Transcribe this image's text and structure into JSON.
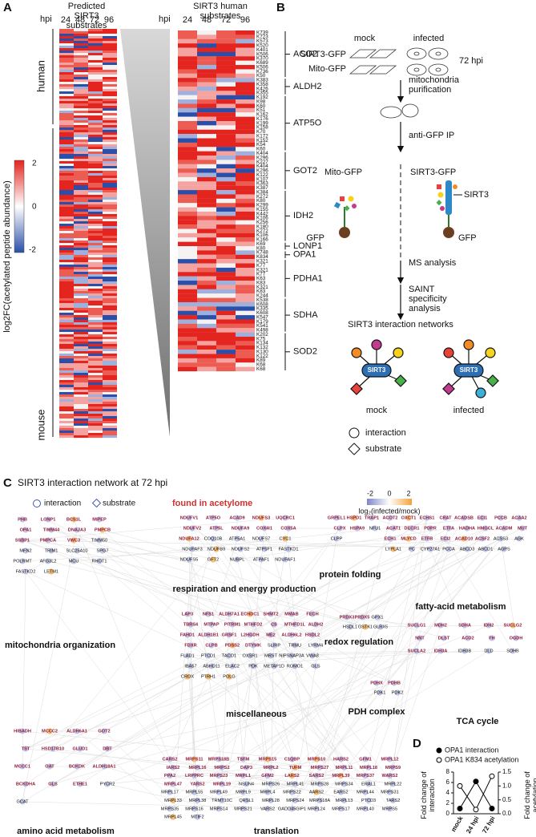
{
  "panel_a": {
    "label": "A",
    "predicted_title": "Predicted SIRT3 substrates",
    "hpi": "hpi",
    "timepoints": [
      "24",
      "48",
      "72",
      "96"
    ],
    "human": "human",
    "mouse": "mouse",
    "colorbar_ticks": [
      "2",
      "0",
      "-2"
    ],
    "colorbar_label": "log2FC(acetylated peptide abundance)",
    "human_title": "SIRT3 human substrates",
    "substrates": [
      {
        "gene": "ACO2",
        "sites": [
          "K739",
          "K723",
          "K573",
          "K520",
          "K401",
          "K506",
          "K370",
          "K689",
          "K506",
          "K736",
          "K50"
        ]
      },
      {
        "gene": "ALDH2",
        "sites": [
          "K383",
          "K358",
          "K426",
          "K355"
        ]
      },
      {
        "gene": "ATP5O",
        "sites": [
          "K192",
          "K98",
          "K60",
          "K51",
          "K162",
          "K176",
          "K199",
          "K158",
          "K70",
          "K172",
          "K152",
          "K54",
          "K60"
        ]
      },
      {
        "gene": "GOT2",
        "sites": [
          "K404",
          "K296",
          "K227",
          "K404",
          "K296",
          "K122",
          "K107",
          "K363",
          "K387"
        ]
      },
      {
        "gene": "IDH2",
        "sites": [
          "K384",
          "K272",
          "K80",
          "K299",
          "K155",
          "K442",
          "K106",
          "K256",
          "K180",
          "K272",
          "K106",
          "K166"
        ]
      },
      {
        "gene": "LONP1",
        "sites": [
          "K69",
          "K80"
        ]
      },
      {
        "gene": "OPA1",
        "sites": [
          "K748",
          "K834"
        ]
      },
      {
        "gene": "PDHA1",
        "sites": [
          "K321",
          "K77",
          "K321",
          "K77",
          "K63",
          "K83",
          "K321",
          "K83",
          "K244"
        ]
      },
      {
        "gene": "SDHA",
        "sites": [
          "K538",
          "K608",
          "K335",
          "K608",
          "K547",
          "K179",
          "K541",
          "K498"
        ]
      },
      {
        "gene": "SOD2",
        "sites": [
          "K202",
          "K75",
          "K134",
          "K132",
          "K130",
          "K122",
          "K89",
          "K68",
          "K68"
        ]
      }
    ]
  },
  "panel_b": {
    "label": "B",
    "mock": "mock",
    "infected": "infected",
    "sirt3_gfp": "SIRT3-GFP",
    "mito_gfp": "Mito-GFP",
    "time": "72 hpi",
    "step1": "mitochondria purification",
    "step2": "anti-GFP IP",
    "sirt3": "SIRT3",
    "gfp": "GFP",
    "step3": "MS analysis",
    "step4": "SAINT specificity analysis",
    "networks": "SIRT3 interaction networks",
    "legend": [
      "interaction",
      "substrate"
    ]
  },
  "panel_c": {
    "label": "C",
    "title": "SIRT3 interaction network at 72 hpi",
    "legend": [
      "interaction",
      "substrate"
    ],
    "acetylome": "found in acetylome",
    "scale_ticks": [
      "-2",
      "0",
      "2"
    ],
    "scale_label": "log₂(infected/mock)",
    "clusters": [
      {
        "title": "mitochondria organization",
        "acetylome": [
          "PHB",
          "LONP1",
          "BCS1L",
          "MIPEP",
          "OPA1",
          "TIMM44",
          "DNAJA3",
          "PMPCB",
          "SSBP1",
          "PMPCA",
          "VWC3"
        ],
        "other": [
          "TIMM50",
          "MFN2",
          "TRIM1",
          "SLC25A10",
          "SPG7",
          "POLRMT",
          "AFG3L2",
          "MCU",
          "RHOT1",
          "FASTKD2",
          "LETM1"
        ]
      },
      {
        "title": "respiration and energy production",
        "acetylome": [
          "NDUFV1",
          "ATP5O",
          "ACAD9",
          "NDUFS3",
          "UQCRC1",
          "NDUFV2",
          "ATP5L",
          "NDUFA9",
          "COX4I1",
          "COX5A",
          "NDUFA12"
        ],
        "other": [
          "COQ10B",
          "ATP5A1",
          "NDUFS7",
          "CYC1",
          "NDUFAF3",
          "NDUFB9",
          "NDUFS2",
          "ATP5F1",
          "FASTKD1",
          "NDUFS5",
          "GFT2",
          "NUBPL",
          "ATPAF1",
          "NDUFAF1"
        ]
      },
      {
        "title": "protein folding",
        "acetylome": [
          "GRPEL1",
          "HSPD1",
          "TRAP1",
          "CLPX",
          "HSPA9"
        ],
        "other": [
          "NFU1",
          "CLPP"
        ]
      },
      {
        "title": "fatty-acid metabolism",
        "acetylome": [
          "ACOT2",
          "OXCT1",
          "ECHS1",
          "CRAT",
          "ACADSB",
          "ECI1",
          "PCCB",
          "ACAA2",
          "ACAT1",
          "DECR1",
          "PDPR",
          "ETFA",
          "HADHA",
          "HMGCL",
          "ACADM",
          "MUT",
          "ECH1",
          "MLYCD",
          "ETFB",
          "ECI2",
          "ACAD10",
          "ACSF2"
        ],
        "other": [
          "ACSS3",
          "AGK",
          "LYPLA1",
          "PC",
          "CYP27A1",
          "PCCA",
          "ABCD3",
          "ABCD1",
          "AGPS"
        ]
      },
      {
        "title": "miscellaneous",
        "acetylome": [
          "LAP3",
          "NFS1",
          "ALDH7A1",
          "ECHDC1",
          "SHMT2",
          "MMAB",
          "FECH",
          "TBRS4",
          "MTPAP",
          "PITRM1",
          "MTHFD2",
          "CS",
          "MTHFD1L",
          "ALDH2",
          "FAHD1",
          "ALDH1B1",
          "GRSF1",
          "L2HGDH",
          "ME2",
          "ALDH6L2",
          "HSDL2",
          "FDXR",
          "CLPB",
          "PDSS2",
          "DTYMK"
        ],
        "other": [
          "SLIRP",
          "TRMU",
          "LYRM4",
          "FLAD1",
          "PTCD1",
          "TACO1",
          "OXSR1",
          "MRST",
          "NIPSNAP3A",
          "VWA8",
          "IBA57",
          "ABHD11",
          "ELAC2",
          "PDK",
          "METAP1D",
          "ROMO1",
          "GLS",
          "CROX",
          "PTRH1",
          "POLG"
        ]
      },
      {
        "title": "redox regulation",
        "acetylome": [
          "PRDX3",
          "PRDX5"
        ],
        "other": [
          "GPX1",
          "HSDL1",
          "GSTK1",
          "GLRX5"
        ]
      },
      {
        "title": "TCA cycle",
        "acetylome": [
          "SUCLG1",
          "MDH2",
          "SDHA",
          "IDH2",
          "SUCLG2",
          "NNT",
          "DLST",
          "ACO2",
          "FH",
          "OGDH",
          "SUCLA2",
          "IDH3A"
        ],
        "other": [
          "IDH3B",
          "DLD",
          "SDHB"
        ]
      },
      {
        "title": "PDH complex",
        "acetylome": [
          "PDHX",
          "PDHB"
        ],
        "other": [
          "PDK1",
          "PDK2"
        ]
      },
      {
        "title": "amino acid metabolism",
        "acetylome": [
          "HIBADH",
          "MCCC2",
          "ALDH6A1",
          "GOT2",
          "TST",
          "HSD17B10",
          "GLUD1",
          "DBT",
          "MCCC1",
          "OAT",
          "BCKDK",
          "ALDH18A1",
          "BCKDHA",
          "GLS",
          "ETHE1"
        ],
        "other": [
          "PYCR2",
          "GCAT"
        ]
      },
      {
        "title": "translation",
        "acetylome": [
          "CARS2",
          "MRPS11",
          "MRPS18B",
          "TSFM",
          "MRPS15",
          "C1QBP",
          "MRPS10",
          "HARS2",
          "GFM1",
          "MRPL12",
          "IARS2",
          "MRPL16",
          "MRPS2",
          "DAP3",
          "MRPL2",
          "TUFM",
          "MRPS27",
          "MRPL11",
          "MRPL18",
          "MRPS9",
          "PPA2",
          "LRPPRC",
          "MRPS23",
          "MRPL1",
          "GFM2",
          "LARS2",
          "SARS2",
          "MRPL39",
          "MRPS37",
          "WARS2",
          "MRPL47",
          "YARS2",
          "MRPL19"
        ],
        "other": [
          "NSUN4",
          "MRPS26",
          "MRPL41",
          "MRPS28",
          "MRPS34",
          "ERAL1",
          "MRPL22",
          "MRPL17",
          "MRPL55",
          "MRPL49",
          "MRPL9",
          "MRPL4",
          "MRPS22",
          "AARS2",
          "EARS2",
          "MRPL44",
          "MRPS31",
          "MRPL33",
          "MRPL38",
          "TRMT10C",
          "QRSL1",
          "MRPL28",
          "MRPS24",
          "MRPS18A",
          "MRPL13",
          "PTCD3",
          "TARS2",
          "MRPS35",
          "MRPS16",
          "MRPS14",
          "MRPS21",
          "VARS2",
          "GADD45GIP1",
          "MRPL24",
          "MRPS17",
          "MRPL40",
          "MRPS5",
          "MRPL45",
          "MTIF2"
        ]
      }
    ]
  },
  "chart_data": {
    "type": "line",
    "label": "D",
    "categories": [
      "mock",
      "24 hpi",
      "72 hpi"
    ],
    "series": [
      {
        "name": "OPA1 interaction",
        "color": "#000000",
        "values": [
          1.0,
          6.2,
          1.0
        ]
      },
      {
        "name": "OPA1 K834 acetylation",
        "color": "#000000",
        "axis": "y2",
        "values": [
          1.0,
          0.15,
          1.35
        ]
      }
    ],
    "ylabel": "Fold change of interaction",
    "y2label": "Fold change of acetylation",
    "ylim": [
      0,
      8
    ],
    "yticks": [
      0,
      2,
      4,
      6,
      8
    ],
    "y2lim": [
      0,
      1.5
    ],
    "y2ticks": [
      {
        "value": 0,
        "label": "0.0"
      },
      0.5,
      {
        "value": 1,
        "label": "1.0"
      },
      1.5
    ]
  }
}
